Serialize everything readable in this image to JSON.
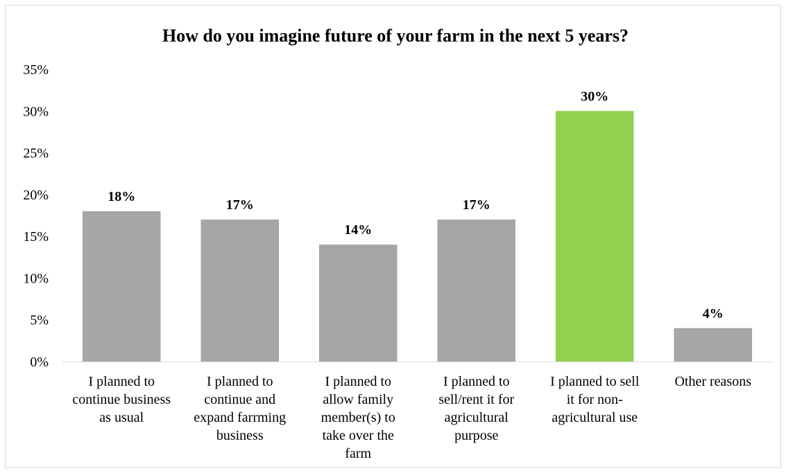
{
  "chart_data": {
    "type": "bar",
    "title": "How do you imagine future of your farm in the next 5 years?",
    "xlabel": "",
    "ylabel": "",
    "ylim": [
      0,
      35
    ],
    "yticks": [
      "0%",
      "5%",
      "10%",
      "15%",
      "20%",
      "25%",
      "30%",
      "35%"
    ],
    "ytick_values": [
      0,
      5,
      10,
      15,
      20,
      25,
      30,
      35
    ],
    "grid": false,
    "legend": "none",
    "categories": [
      [
        "I planned to",
        "continue business",
        "as usual"
      ],
      [
        "I planned to",
        "continue and",
        "expand farrming",
        "business"
      ],
      [
        "I planned to",
        "allow family",
        "member(s) to",
        "take over the",
        "farm"
      ],
      [
        "I planned  to",
        "sell/rent it for",
        "agricultural",
        "purpose"
      ],
      [
        "I planned to sell",
        "it for non-",
        "agricultural use"
      ],
      [
        "Other reasons"
      ]
    ],
    "values": [
      18,
      17,
      14,
      17,
      30,
      4
    ],
    "data_labels": [
      "18%",
      "17%",
      "14%",
      "17%",
      "30%",
      "4%"
    ],
    "colors": {
      "default": "#a6a6a6",
      "highlight": "#92d050",
      "axis": "#d9d9d9"
    },
    "highlight_index": 4
  }
}
